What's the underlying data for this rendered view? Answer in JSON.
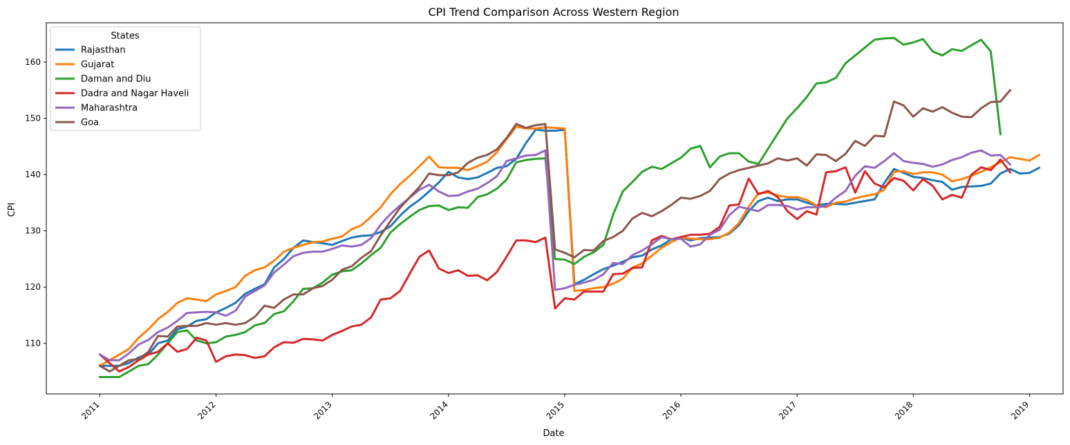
{
  "chart_data": {
    "type": "line",
    "title": "CPI Trend Comparison Across Western Region",
    "xlabel": "Date",
    "ylabel": "CPI",
    "xlim": [
      "2010-07-15",
      "2019-04-15"
    ],
    "ylim": [
      101,
      167
    ],
    "x_ticks": [
      "2011",
      "2012",
      "2013",
      "2014",
      "2015",
      "2016",
      "2017",
      "2018",
      "2019"
    ],
    "y_ticks": [
      110,
      120,
      130,
      140,
      150,
      160
    ],
    "grid": false,
    "legend": {
      "title": "States",
      "placement": "top-left"
    },
    "x_start": "2011-01",
    "x_step": "1 month",
    "series": [
      {
        "name": "Rajasthan",
        "color": "#1f77b4",
        "values": [
          106.0,
          106.0,
          106.0,
          106.5,
          107.5,
          108.0,
          110.0,
          110.5,
          112.5,
          113.0,
          114.0,
          114.3,
          115.5,
          116.3,
          117.2,
          118.8,
          119.7,
          120.5,
          123.5,
          125.0,
          127.0,
          128.3,
          128.0,
          127.8,
          127.5,
          128.2,
          128.8,
          129.1,
          129.2,
          129.8,
          130.8,
          132.7,
          134.3,
          135.5,
          137.0,
          138.6,
          140.5,
          139.5,
          139.2,
          139.5,
          140.3,
          141.2,
          141.5,
          142.8,
          145.6,
          148.0,
          147.8,
          147.8,
          148.0,
          120.5,
          121.3,
          122.3,
          123.2,
          123.8,
          124.5,
          125.3,
          125.6,
          126.7,
          127.4,
          128.5,
          128.8,
          128.3,
          128.7,
          128.8,
          128.9,
          129.5,
          131.0,
          133.5,
          135.3,
          135.9,
          135.3,
          135.6,
          135.6,
          135.0,
          134.5,
          134.8,
          134.8,
          134.7,
          135.0,
          135.3,
          135.6,
          138.5,
          141.0,
          140.3,
          139.6,
          139.4,
          139.0,
          138.7,
          137.3,
          137.8,
          137.9,
          138.0,
          138.4,
          140.2,
          141.0,
          140.2,
          140.3,
          141.2
        ]
      },
      {
        "name": "Gujarat",
        "color": "#ff7f0e",
        "values": [
          106.0,
          107.0,
          108.0,
          109.0,
          111.0,
          112.5,
          114.3,
          115.6,
          117.2,
          118.0,
          117.8,
          117.5,
          118.7,
          119.3,
          120.0,
          122.0,
          123.0,
          123.5,
          124.7,
          126.3,
          127.0,
          127.5,
          128.0,
          128.1,
          128.6,
          129.0,
          130.3,
          131.0,
          132.5,
          134.2,
          136.5,
          138.3,
          139.8,
          141.5,
          143.2,
          141.3,
          141.2,
          141.2,
          140.8,
          141.5,
          142.3,
          144.0,
          146.3,
          148.5,
          148.2,
          148.2,
          148.4,
          148.3,
          148.2,
          119.3,
          119.5,
          119.8,
          120.0,
          120.6,
          121.5,
          123.5,
          124.2,
          125.6,
          127.0,
          128.0,
          128.8,
          128.6,
          128.5,
          128.5,
          128.8,
          129.7,
          131.4,
          134.3,
          136.7,
          136.8,
          136.3,
          136.0,
          136.0,
          135.5,
          134.5,
          134.2,
          135.0,
          135.2,
          135.8,
          136.2,
          136.5,
          137.3,
          140.5,
          140.6,
          140.1,
          140.4,
          140.4,
          140.0,
          138.8,
          139.2,
          139.8,
          140.5,
          141.3,
          142.2,
          143.1,
          142.8,
          142.5,
          143.5
        ]
      },
      {
        "name": "Daman and Diu",
        "color": "#2ca02c",
        "values": [
          104.0,
          104.0,
          104.0,
          105.0,
          106.0,
          106.3,
          108.0,
          110.0,
          112.0,
          112.3,
          110.5,
          110.0,
          110.2,
          111.2,
          111.5,
          112.0,
          113.2,
          113.6,
          115.2,
          115.7,
          117.5,
          119.7,
          119.8,
          120.8,
          122.2,
          122.8,
          123.0,
          124.2,
          125.7,
          127.0,
          129.7,
          131.2,
          132.5,
          133.7,
          134.4,
          134.5,
          133.7,
          134.2,
          134.1,
          136.0,
          136.5,
          137.5,
          139.1,
          142.2,
          142.6,
          142.8,
          142.9,
          125.0,
          124.9,
          124.1,
          125.4,
          126.2,
          127.5,
          132.9,
          137.0,
          138.7,
          140.5,
          141.4,
          141.0,
          142.0,
          143.0,
          144.6,
          145.1,
          141.3,
          143.2,
          143.8,
          143.8,
          142.3,
          141.9,
          144.6,
          147.3,
          150.0,
          151.8,
          153.8,
          156.2,
          156.4,
          157.2,
          159.8,
          161.2,
          162.6,
          164.0,
          164.2,
          164.3,
          163.1,
          163.5,
          164.1,
          161.9,
          161.2,
          162.3,
          162.0,
          163.0,
          164.0,
          161.9,
          147.2
        ]
      },
      {
        "name": "Dadra and Nagar Haveli",
        "color": "#d62728",
        "values": [
          108.0,
          106.5,
          105.0,
          105.8,
          107.0,
          108.0,
          108.5,
          110.0,
          108.5,
          109.0,
          111.0,
          110.5,
          106.7,
          107.7,
          108.0,
          107.9,
          107.4,
          107.7,
          109.3,
          110.2,
          110.1,
          110.8,
          110.7,
          110.5,
          111.5,
          112.2,
          113.0,
          113.3,
          114.6,
          117.8,
          118.0,
          119.3,
          122.4,
          125.4,
          126.5,
          123.3,
          122.5,
          123.0,
          122.0,
          122.1,
          121.2,
          122.7,
          125.4,
          128.3,
          128.3,
          128.0,
          128.8,
          116.2,
          118.0,
          117.8,
          119.2,
          119.2,
          119.2,
          122.3,
          122.4,
          123.4,
          123.5,
          128.3,
          129.1,
          128.5,
          128.9,
          129.3,
          129.3,
          129.5,
          130.7,
          134.5,
          134.7,
          139.3,
          136.5,
          137.1,
          136.0,
          133.5,
          132.1,
          133.5,
          132.9,
          140.4,
          140.6,
          141.3,
          136.8,
          140.6,
          138.4,
          137.7,
          139.4,
          138.9,
          137.2,
          139.2,
          138.0,
          135.6,
          136.4,
          135.9,
          140.0,
          141.3,
          140.8,
          142.7,
          140.4
        ]
      },
      {
        "name": "Maharashtra",
        "color": "#9467bd",
        "values": [
          108.0,
          107.0,
          107.0,
          108.2,
          109.8,
          110.6,
          112.0,
          112.8,
          114.0,
          115.4,
          115.5,
          115.6,
          115.5,
          114.9,
          115.8,
          118.3,
          119.3,
          120.3,
          122.6,
          124.0,
          125.5,
          126.1,
          126.3,
          126.3,
          126.8,
          127.4,
          127.2,
          127.5,
          128.7,
          131.1,
          133.0,
          134.5,
          135.9,
          137.3,
          138.2,
          137.0,
          136.2,
          136.3,
          137.0,
          137.5,
          138.5,
          139.7,
          142.4,
          142.9,
          143.4,
          143.5,
          144.3,
          119.5,
          119.8,
          120.4,
          120.8,
          121.3,
          122.3,
          124.3,
          124.1,
          125.7,
          126.5,
          127.6,
          128.9,
          128.5,
          128.6,
          127.2,
          127.6,
          129.3,
          130.2,
          132.8,
          134.3,
          133.9,
          133.5,
          134.6,
          134.6,
          134.4,
          133.8,
          134.2,
          134.2,
          134.4,
          135.9,
          137.1,
          139.8,
          141.5,
          141.2,
          142.4,
          143.8,
          142.4,
          142.1,
          141.9,
          141.4,
          141.8,
          142.6,
          143.1,
          143.9,
          144.3,
          143.4,
          143.5,
          141.8
        ]
      },
      {
        "name": "Goa",
        "color": "#8c564b",
        "values": [
          106.0,
          105.0,
          106.0,
          107.0,
          107.2,
          108.5,
          111.3,
          111.2,
          113.0,
          113.1,
          113.1,
          113.6,
          113.3,
          113.6,
          113.3,
          113.6,
          114.7,
          116.7,
          116.3,
          117.8,
          118.7,
          118.7,
          119.8,
          120.2,
          121.3,
          123.1,
          123.7,
          125.2,
          126.4,
          129.2,
          131.7,
          134.1,
          136.0,
          137.8,
          140.2,
          139.9,
          139.9,
          140.4,
          142.1,
          143.0,
          143.5,
          144.5,
          146.5,
          149.0,
          148.3,
          148.8,
          149.0,
          126.7,
          126.1,
          125.3,
          126.6,
          126.5,
          128.2,
          128.9,
          130.0,
          132.2,
          133.2,
          132.6,
          133.5,
          134.6,
          135.9,
          135.7,
          136.2,
          137.1,
          139.2,
          140.2,
          140.8,
          141.2,
          141.6,
          142.0,
          142.9,
          142.5,
          142.9,
          141.6,
          143.6,
          143.5,
          142.4,
          143.7,
          146.0,
          145.1,
          146.9,
          146.8,
          153.0,
          152.3,
          150.3,
          151.8,
          151.2,
          152.0,
          151.0,
          150.3,
          150.2,
          151.8,
          152.9,
          153.0,
          155.0
        ]
      }
    ]
  }
}
